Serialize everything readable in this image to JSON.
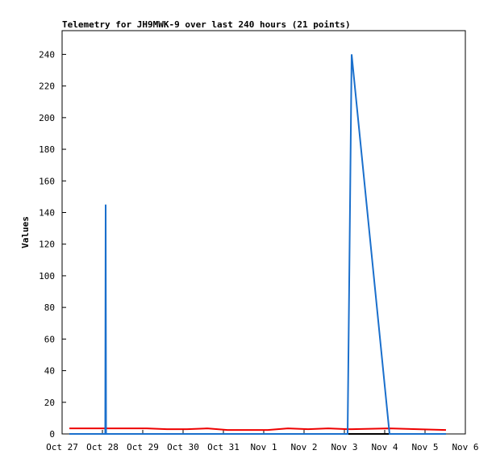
{
  "chart_data": {
    "type": "line",
    "title": "Telemetry for JH9MWK-9 over last 240 hours (21 points)",
    "ylabel": "Values",
    "x": [
      0.18,
      0.6,
      1.07,
      1.08,
      1.09,
      1.6,
      2.1,
      2.6,
      3.1,
      3.6,
      4.1,
      4.6,
      5.1,
      5.6,
      6.1,
      6.6,
      7.08,
      7.13,
      7.18,
      8.12,
      9.52
    ],
    "series": [
      {
        "color": "#000000",
        "values": [
          0,
          0,
          0,
          0,
          0,
          0,
          0,
          0,
          0,
          0,
          0,
          0,
          0,
          0,
          0,
          0,
          0,
          0,
          0,
          0,
          0
        ]
      },
      {
        "color": "#ee0000",
        "values": [
          3.5,
          3.5,
          3.5,
          3.5,
          3.5,
          3.5,
          3.5,
          3,
          3,
          3.5,
          2.5,
          2.5,
          2.5,
          3.5,
          3,
          3.5,
          3,
          3,
          3,
          3.5,
          2.5
        ]
      },
      {
        "color": "#1a6fcc",
        "values": [
          0,
          0,
          0,
          145,
          0,
          0,
          0,
          0,
          0,
          0,
          0,
          0,
          0,
          0,
          0,
          0,
          0,
          120,
          240,
          0,
          0
        ]
      }
    ],
    "xlim": [
      0,
      10
    ],
    "xticks": [
      {
        "value": 0,
        "label": "Oct 27"
      },
      {
        "value": 1,
        "label": "Oct 28"
      },
      {
        "value": 2,
        "label": "Oct 29"
      },
      {
        "value": 3,
        "label": "Oct 30"
      },
      {
        "value": 4,
        "label": "Oct 31"
      },
      {
        "value": 5,
        "label": "Nov 1"
      },
      {
        "value": 6,
        "label": "Nov 2"
      },
      {
        "value": 7,
        "label": "Nov 3"
      },
      {
        "value": 8,
        "label": "Nov 4"
      },
      {
        "value": 9,
        "label": "Nov 5"
      },
      {
        "value": 10,
        "label": "Nov 6"
      }
    ],
    "ylim": [
      0,
      255
    ],
    "yticks": [
      0,
      20,
      40,
      60,
      80,
      100,
      120,
      140,
      160,
      180,
      200,
      220,
      240
    ]
  }
}
